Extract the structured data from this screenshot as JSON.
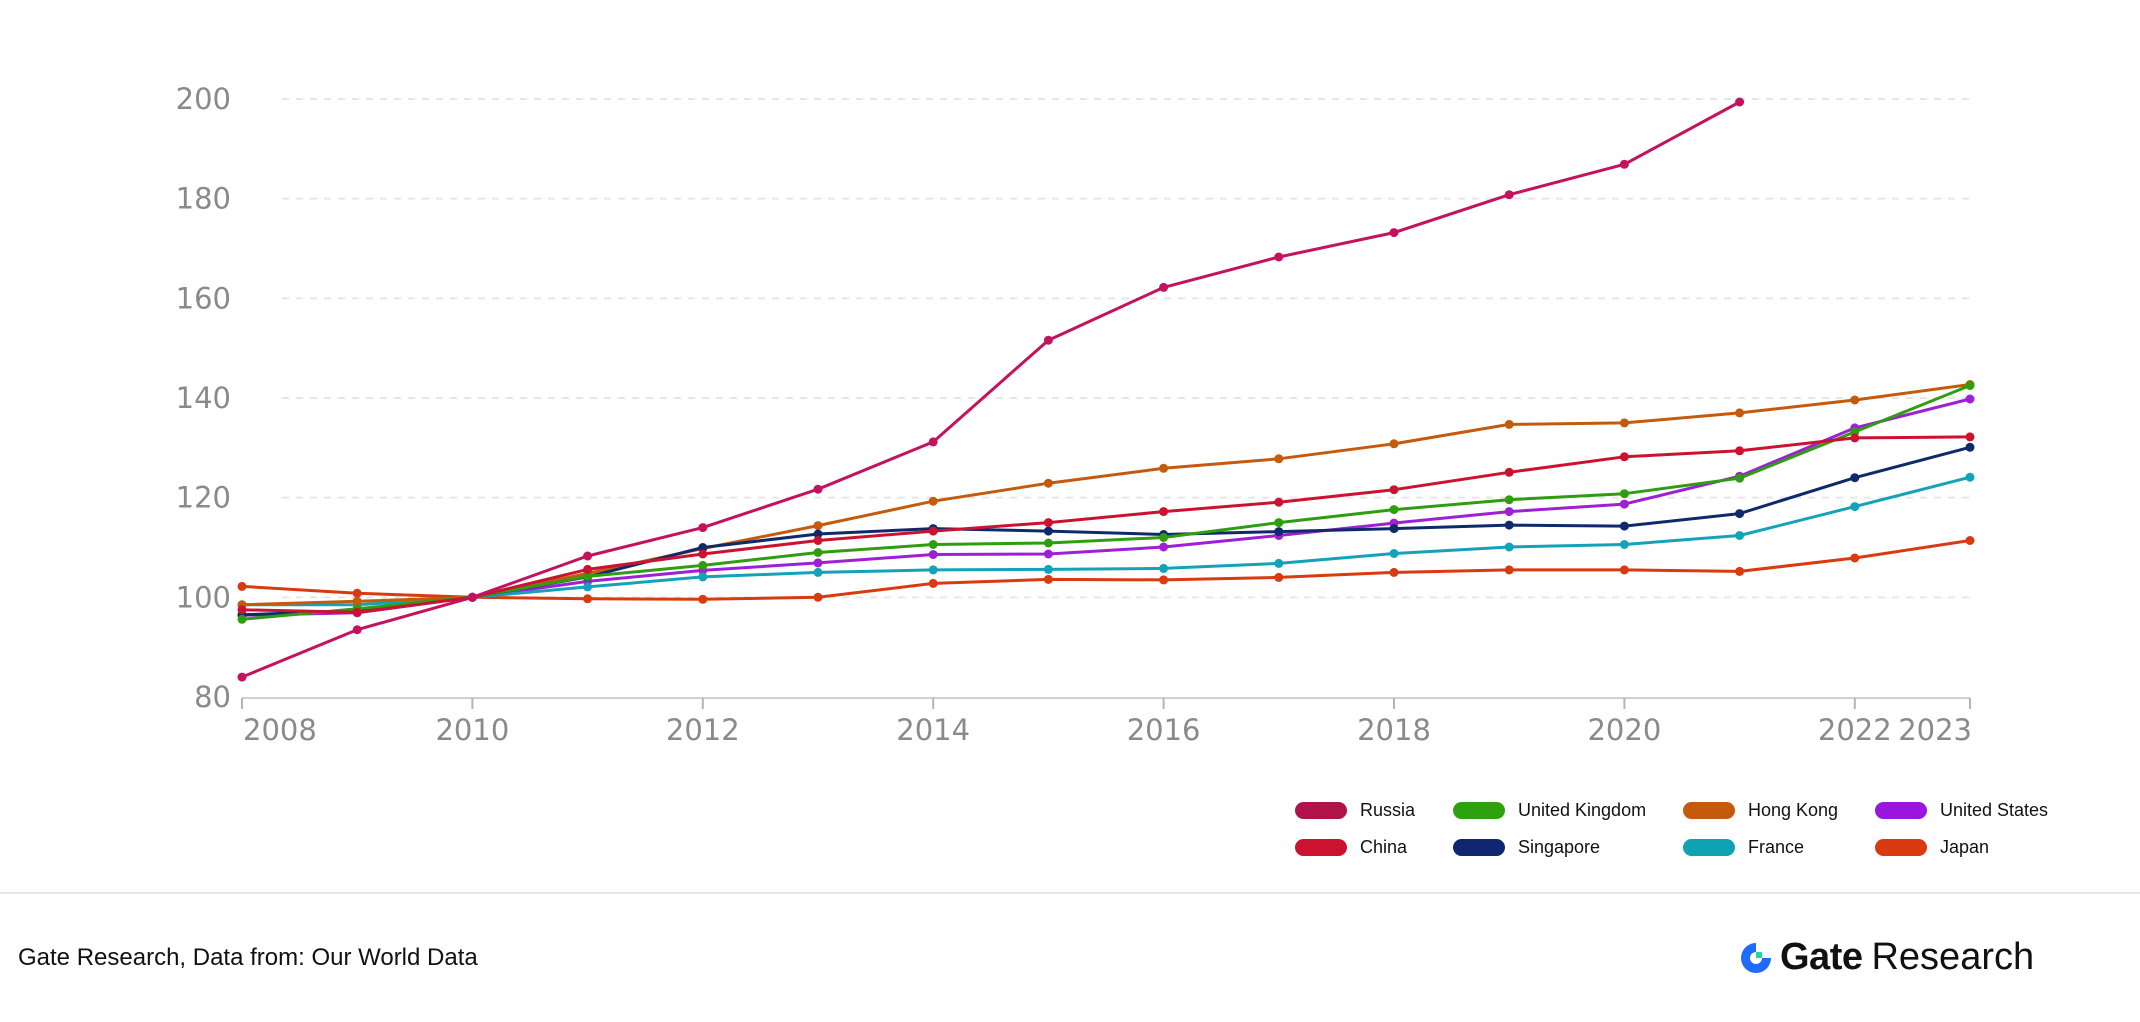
{
  "chart_data": {
    "type": "line",
    "title": "",
    "xlabel": "",
    "ylabel": "",
    "xlim": [
      2008,
      2023
    ],
    "ylim": [
      80,
      200
    ],
    "x_ticks": [
      2008,
      2010,
      2012,
      2014,
      2016,
      2018,
      2020,
      2022,
      2023
    ],
    "y_ticks": [
      80,
      100,
      120,
      140,
      160,
      180,
      200
    ],
    "grid": "horizontal dashed",
    "legend_position": "bottom-right",
    "series": [
      {
        "name": "Russia",
        "color": "#c4125e",
        "points": [
          [
            2008,
            84
          ],
          [
            2009,
            93.5
          ],
          [
            2010,
            100
          ],
          [
            2011,
            108.3
          ],
          [
            2012,
            114
          ],
          [
            2013,
            121.7
          ],
          [
            2014,
            131.2
          ],
          [
            2015,
            151.6
          ],
          [
            2016,
            162.2
          ],
          [
            2017,
            168.3
          ],
          [
            2018,
            173.2
          ],
          [
            2019,
            180.8
          ],
          [
            2020,
            186.9
          ],
          [
            2021,
            199.4
          ]
        ]
      },
      {
        "name": "China",
        "color": "#cc1231",
        "points": [
          [
            2008,
            97.5
          ],
          [
            2009,
            97
          ],
          [
            2010,
            100
          ],
          [
            2011,
            105.6
          ],
          [
            2012,
            108.7
          ],
          [
            2013,
            111.4
          ],
          [
            2014,
            113.3
          ],
          [
            2015,
            115
          ],
          [
            2016,
            117.2
          ],
          [
            2017,
            119.1
          ],
          [
            2018,
            121.6
          ],
          [
            2019,
            125.1
          ],
          [
            2020,
            128.2
          ],
          [
            2021,
            129.4
          ],
          [
            2022,
            132
          ],
          [
            2023,
            132.2
          ]
        ]
      },
      {
        "name": "United Kingdom",
        "color": "#2e9d0f",
        "points": [
          [
            2008,
            95.6
          ],
          [
            2009,
            97.7
          ],
          [
            2010,
            100
          ],
          [
            2011,
            104.2
          ],
          [
            2012,
            106.4
          ],
          [
            2013,
            109
          ],
          [
            2014,
            110.6
          ],
          [
            2015,
            110.9
          ],
          [
            2016,
            112
          ],
          [
            2017,
            115
          ],
          [
            2018,
            117.6
          ],
          [
            2019,
            119.6
          ],
          [
            2020,
            120.8
          ],
          [
            2021,
            123.9
          ],
          [
            2022,
            133.2
          ],
          [
            2023,
            142.5
          ]
        ]
      },
      {
        "name": "Singapore",
        "color": "#0f2a6b",
        "points": [
          [
            2008,
            96.5
          ],
          [
            2009,
            97.3
          ],
          [
            2010,
            100
          ],
          [
            2011,
            104.1
          ],
          [
            2012,
            110
          ],
          [
            2013,
            112.7
          ],
          [
            2014,
            113.8
          ],
          [
            2015,
            113.3
          ],
          [
            2016,
            112.6
          ],
          [
            2017,
            113.2
          ],
          [
            2018,
            113.8
          ],
          [
            2019,
            114.5
          ],
          [
            2020,
            114.3
          ],
          [
            2021,
            116.8
          ],
          [
            2022,
            124
          ],
          [
            2023,
            130.1
          ]
        ]
      },
      {
        "name": "Hong Kong",
        "color": "#c55a0d",
        "points": [
          [
            2008,
            98.5
          ],
          [
            2009,
            99.2
          ],
          [
            2010,
            100
          ],
          [
            2011,
            104.8
          ],
          [
            2012,
            109.8
          ],
          [
            2013,
            114.4
          ],
          [
            2014,
            119.3
          ],
          [
            2015,
            122.9
          ],
          [
            2016,
            125.9
          ],
          [
            2017,
            127.8
          ],
          [
            2018,
            130.8
          ],
          [
            2019,
            134.7
          ],
          [
            2020,
            135
          ],
          [
            2021,
            137
          ],
          [
            2022,
            139.6
          ],
          [
            2023,
            142.7
          ]
        ]
      },
      {
        "name": "France",
        "color": "#12a3b8",
        "points": [
          [
            2008,
            98.5
          ],
          [
            2009,
            98.5
          ],
          [
            2010,
            100
          ],
          [
            2011,
            102.1
          ],
          [
            2012,
            104.1
          ],
          [
            2013,
            105
          ],
          [
            2014,
            105.5
          ],
          [
            2015,
            105.6
          ],
          [
            2016,
            105.8
          ],
          [
            2017,
            106.8
          ],
          [
            2018,
            108.8
          ],
          [
            2019,
            110.1
          ],
          [
            2020,
            110.6
          ],
          [
            2021,
            112.4
          ],
          [
            2022,
            118.2
          ],
          [
            2023,
            124.1
          ]
        ]
      },
      {
        "name": "United States",
        "color": "#9d1fd6",
        "points": [
          [
            2008,
            96.4
          ],
          [
            2009,
            96.9
          ],
          [
            2010,
            100
          ],
          [
            2011,
            103.2
          ],
          [
            2012,
            105.4
          ],
          [
            2013,
            106.9
          ],
          [
            2014,
            108.6
          ],
          [
            2015,
            108.7
          ],
          [
            2016,
            110.1
          ],
          [
            2017,
            112.4
          ],
          [
            2018,
            114.9
          ],
          [
            2019,
            117.2
          ],
          [
            2020,
            118.7
          ],
          [
            2021,
            124.3
          ],
          [
            2022,
            134
          ],
          [
            2023,
            139.8
          ]
        ]
      },
      {
        "name": "Japan",
        "color": "#d93a10",
        "points": [
          [
            2008,
            102.2
          ],
          [
            2009,
            100.8
          ],
          [
            2010,
            100
          ],
          [
            2011,
            99.7
          ],
          [
            2012,
            99.6
          ],
          [
            2013,
            100
          ],
          [
            2014,
            102.8
          ],
          [
            2015,
            103.6
          ],
          [
            2016,
            103.5
          ],
          [
            2017,
            104
          ],
          [
            2018,
            105
          ],
          [
            2019,
            105.5
          ],
          [
            2020,
            105.5
          ],
          [
            2021,
            105.2
          ],
          [
            2022,
            107.9
          ],
          [
            2023,
            111.4
          ]
        ]
      }
    ]
  },
  "legend": [
    {
      "label": "Russia",
      "color": "#b0124a"
    },
    {
      "label": "United Kingdom",
      "color": "#2ea10f"
    },
    {
      "label": "Hong Kong",
      "color": "#c55a0d"
    },
    {
      "label": "United States",
      "color": "#9a15dd"
    },
    {
      "label": "China",
      "color": "#cc1231"
    },
    {
      "label": "Singapore",
      "color": "#0f2670"
    },
    {
      "label": "France",
      "color": "#0ea3b3"
    },
    {
      "label": "Japan",
      "color": "#d93a10"
    }
  ],
  "footer": {
    "source": "Gate Research, Data from: Our World Data",
    "brand_gate": "Gate",
    "brand_research": "Research"
  },
  "colors": {
    "brand_logo_blue": "#1f6bff",
    "brand_logo_green": "#22d6a6"
  }
}
